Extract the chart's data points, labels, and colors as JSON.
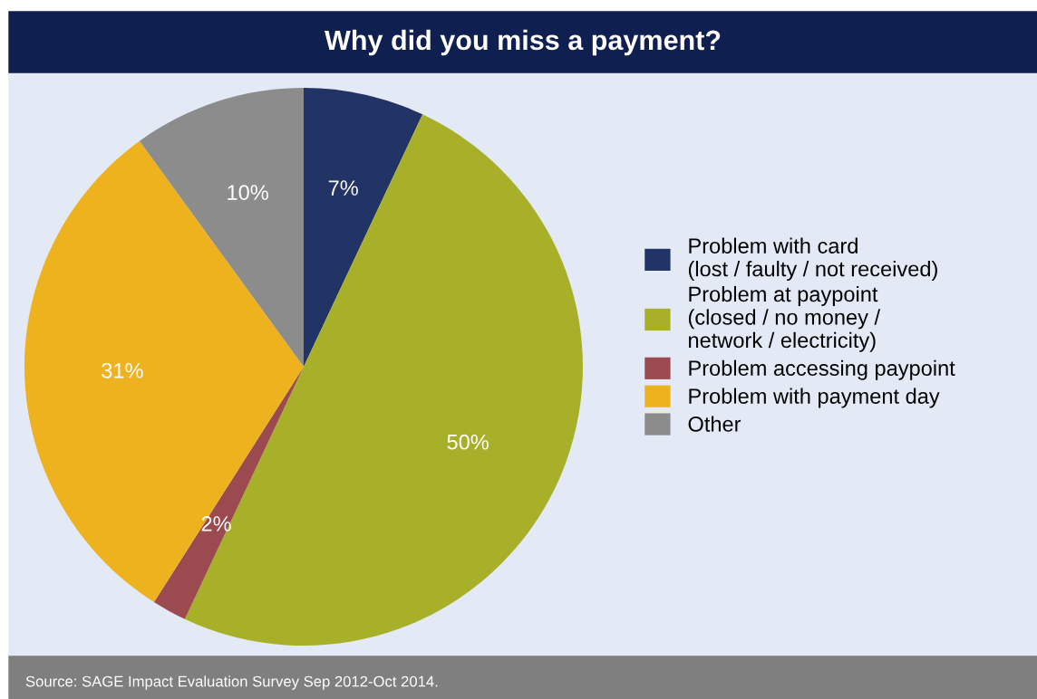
{
  "chart_data": {
    "type": "pie",
    "title": "Why did you miss a payment?",
    "categories": [
      "Problem with card\n(lost / faulty / not received)",
      "Problem at paypoint\n(closed / no money /\nnetwork / electricity)",
      "Problem accessing paypoint",
      "Problem with payment day",
      "Other"
    ],
    "values": [
      7,
      50,
      2,
      31,
      10
    ],
    "colors": [
      "#223366",
      "#a8b02a",
      "#9b4a50",
      "#eeb21e",
      "#8c8c8c"
    ],
    "value_labels": [
      "7%",
      "50%",
      "2%",
      "31%",
      "10%"
    ],
    "legend": "right",
    "annotations": [
      "Source: SAGE Impact Evaluation Survey Sep 2012-Oct 2014."
    ]
  }
}
